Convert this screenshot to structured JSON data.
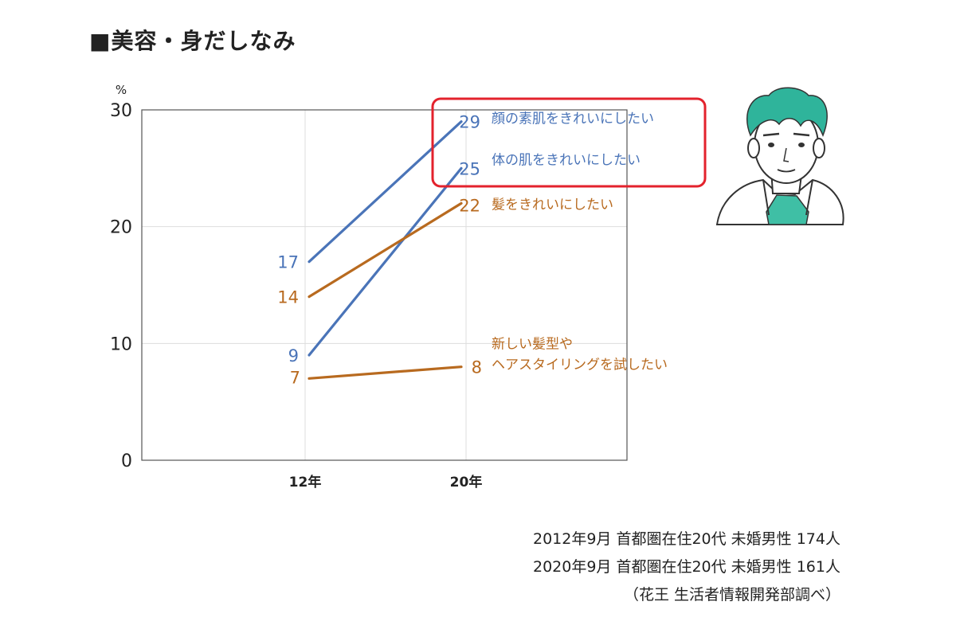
{
  "title": "■美容・身だしなみ",
  "colors": {
    "blue": "#4a74b8",
    "orange": "#b86a1f",
    "highlight": "#e3222c",
    "grid": "#dddddd",
    "axis": "#555555"
  },
  "chart_data": {
    "type": "line",
    "categories": [
      "12年",
      "20年"
    ],
    "y_unit": "%",
    "ylim": [
      0,
      30
    ],
    "yticks": [
      0,
      10,
      20,
      30
    ],
    "grid": true,
    "series": [
      {
        "name": "顔の素肌をきれいにしたい",
        "values": [
          17,
          29
        ],
        "color": "blue",
        "highlighted": true
      },
      {
        "name": "体の肌をきれいにしたい",
        "values": [
          9,
          25
        ],
        "color": "blue",
        "highlighted": true
      },
      {
        "name": "髪をきれいにしたい",
        "values": [
          14,
          22
        ],
        "color": "orange",
        "highlighted": false
      },
      {
        "name": "新しい髪型や\nヘアスタイリングを試したい",
        "values": [
          7,
          8
        ],
        "color": "orange",
        "highlighted": false
      }
    ]
  },
  "footnotes": [
    "2012年9月 首都圏在住20代 未婚男性 174人",
    "2020年9月 首都圏在住20代 未婚男性 161人",
    "（花王 生活者情報開発部調べ）"
  ]
}
